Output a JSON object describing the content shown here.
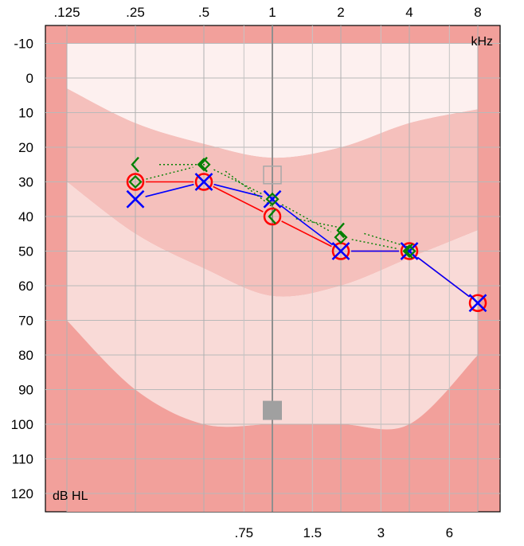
{
  "chart_data": {
    "type": "audiogram",
    "x_unit": "kHz",
    "y_unit": "dB HL",
    "x_scale": "log2",
    "y_inverted": true,
    "ylim": [
      -15,
      130
    ],
    "y_ticks": [
      -10,
      0,
      10,
      20,
      30,
      40,
      50,
      60,
      70,
      80,
      90,
      100,
      110,
      120
    ],
    "x_ticks_top": [
      {
        "freq": 0.125,
        "label": ".125"
      },
      {
        "freq": 0.25,
        "label": ".25"
      },
      {
        "freq": 0.5,
        "label": ".5"
      },
      {
        "freq": 1,
        "label": "1"
      },
      {
        "freq": 2,
        "label": "2"
      },
      {
        "freq": 4,
        "label": "4"
      },
      {
        "freq": 8,
        "label": "8"
      }
    ],
    "x_ticks_bottom": [
      {
        "freq": 0.75,
        "label": ".75"
      },
      {
        "freq": 1.5,
        "label": "1.5"
      },
      {
        "freq": 3,
        "label": "3"
      },
      {
        "freq": 6,
        "label": "6"
      }
    ],
    "speech_banana": {
      "outer_upper": [
        [
          0.125,
          3
        ],
        [
          0.25,
          13
        ],
        [
          0.5,
          19
        ],
        [
          1,
          23
        ],
        [
          2,
          20
        ],
        [
          4,
          13
        ],
        [
          8,
          9
        ]
      ],
      "outer_lower": [
        [
          0.125,
          70
        ],
        [
          0.25,
          90
        ],
        [
          0.5,
          100
        ],
        [
          1,
          100
        ],
        [
          2,
          100
        ],
        [
          4,
          100
        ],
        [
          8,
          80
        ]
      ],
      "inner_upper": [
        [
          0.125,
          30
        ],
        [
          0.25,
          45
        ],
        [
          0.5,
          55
        ],
        [
          1,
          63
        ],
        [
          2,
          60
        ],
        [
          4,
          52
        ],
        [
          8,
          44
        ]
      ]
    },
    "markers": [
      {
        "type": "masked-square",
        "freq": 1,
        "db": 28,
        "filled": false
      },
      {
        "type": "masked-square",
        "freq": 1,
        "db": 96,
        "filled": true
      }
    ],
    "series": [
      {
        "name": "Right ear air",
        "symbol": "circle",
        "color": "#ff0000",
        "line": "solid",
        "points": [
          [
            0.25,
            30
          ],
          [
            0.5,
            30
          ],
          [
            1,
            40
          ],
          [
            2,
            50
          ],
          [
            4,
            50
          ],
          [
            8,
            65
          ]
        ]
      },
      {
        "name": "Left ear air",
        "symbol": "cross",
        "color": "#0000ff",
        "line": "solid",
        "points": [
          [
            0.25,
            35
          ],
          [
            0.5,
            30
          ],
          [
            1,
            35
          ],
          [
            2,
            50
          ],
          [
            4,
            50
          ],
          [
            8,
            65
          ]
        ]
      },
      {
        "name": "Right ear bone",
        "symbol": "bracket-left",
        "color": "#008000",
        "line": "dotted",
        "points": [
          [
            0.25,
            25
          ],
          [
            0.5,
            25
          ],
          [
            1,
            40
          ],
          [
            2,
            44
          ],
          [
            4,
            50
          ]
        ]
      },
      {
        "name": "Left ear bone",
        "symbol": "diamond",
        "color": "#008000",
        "line": "dotted",
        "points": [
          [
            0.25,
            30
          ],
          [
            0.5,
            25
          ],
          [
            1,
            35
          ],
          [
            2,
            46
          ],
          [
            4,
            50
          ]
        ]
      }
    ]
  }
}
